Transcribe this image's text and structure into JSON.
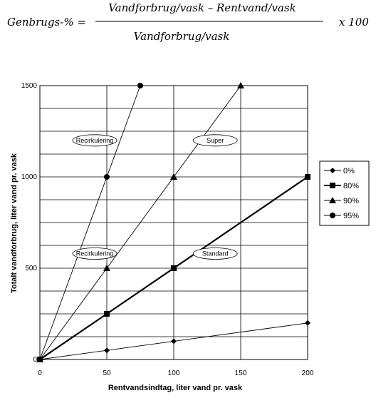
{
  "formula": {
    "lhs": "Genbrugs-% =",
    "numerator": "Vandforbrug/vask – Rentvand/vask",
    "denominator": "Vandforbrug/vask",
    "multiplier": "x 100"
  },
  "chart_data": {
    "type": "line",
    "xlabel": "Rentvandsindtag, liter vand pr. vask",
    "ylabel": "Totalt vandforbrug, liter vand pr. vask",
    "xlim": [
      0,
      200
    ],
    "ylim": [
      0,
      1500
    ],
    "xticks": [
      0,
      50,
      100,
      150,
      200
    ],
    "yticks": [
      0,
      500,
      1000,
      1500
    ],
    "ygrid_step": 125,
    "grid": true,
    "legend_position": "right",
    "series": [
      {
        "name": "0%",
        "marker": "diamond",
        "line": "thin",
        "x": [
          0,
          50,
          100,
          200
        ],
        "y": [
          0,
          50,
          100,
          200
        ]
      },
      {
        "name": "80%",
        "marker": "square",
        "line": "thick",
        "x": [
          0,
          50,
          100,
          200
        ],
        "y": [
          0,
          250,
          500,
          1000
        ]
      },
      {
        "name": "90%",
        "marker": "triangle",
        "line": "thin",
        "x": [
          0,
          50,
          100,
          150
        ],
        "y": [
          0,
          500,
          1000,
          1500
        ]
      },
      {
        "name": "95%",
        "marker": "circle",
        "line": "thin",
        "x": [
          0,
          50,
          75
        ],
        "y": [
          0,
          1000,
          1500
        ]
      }
    ],
    "annotations": [
      {
        "text": "Recirkulering",
        "x": 50,
        "y": 1200
      },
      {
        "text": "Super",
        "x": 140,
        "y": 1200
      },
      {
        "text": "Recirkulering",
        "x": 50,
        "y": 580
      },
      {
        "text": "Standard",
        "x": 140,
        "y": 580
      }
    ]
  }
}
